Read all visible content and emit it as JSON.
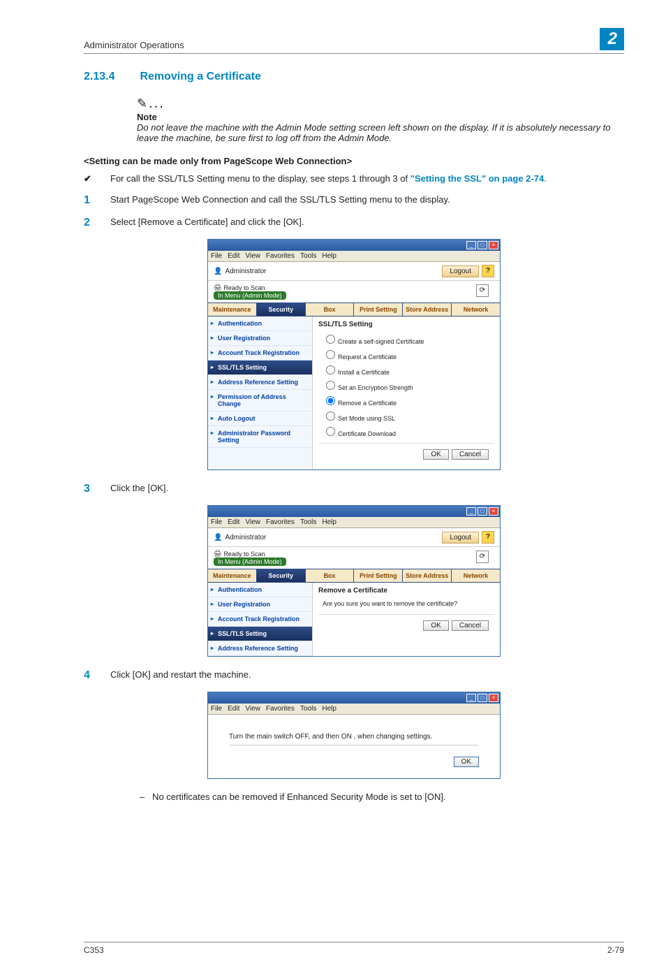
{
  "header": {
    "running_title": "Administrator Operations",
    "chapter_number": "2"
  },
  "section": {
    "number": "2.13.4",
    "title": "Removing a Certificate"
  },
  "note": {
    "label": "Note",
    "body": "Do not leave the machine with the Admin Mode setting screen left shown on the display. If it is absolutely necessary to leave the machine, be sure first to log off from the Admin Mode."
  },
  "subheading": "<Setting can be made only from PageScope Web Connection>",
  "check": {
    "mark": "✔",
    "text_a": "For call the SSL/TLS Setting menu to the display, see steps 1 through 3 of ",
    "link": "\"Setting the SSL\" on page 2-74",
    "text_b": "."
  },
  "steps": {
    "s1": {
      "num": "1",
      "text": "Start PageScope Web Connection and call the SSL/TLS Setting menu to the display."
    },
    "s2": {
      "num": "2",
      "text": "Select [Remove a Certificate] and click the [OK]."
    },
    "s3": {
      "num": "3",
      "text": "Click the [OK]."
    },
    "s4": {
      "num": "4",
      "text": "Click [OK] and restart the machine."
    }
  },
  "browser": {
    "menus": [
      "File",
      "Edit",
      "View",
      "Favorites",
      "Tools",
      "Help"
    ],
    "admin_label": "Administrator",
    "logout": "Logout",
    "help": "?",
    "ready": "Ready to Scan",
    "mode": "In Menu (Admin Mode)",
    "refresh": "⟳",
    "tabs": [
      "Maintenance",
      "Security",
      "Box",
      "Print Setting",
      "Store Address",
      "Network"
    ],
    "sidebar": [
      "Authentication",
      "User Registration",
      "Account Track Registration",
      "SSL/TLS Setting",
      "Address Reference Setting",
      "Permission of Address Change",
      "Auto Logout",
      "Administrator Password Setting"
    ],
    "ssl_title": "SSL/TLS Setting",
    "radios": [
      "Create a self-signed Certificate",
      "Request a Certificate",
      "Install a Certificate",
      "Set an Encryption Strength",
      "Remove a Certificate",
      "Set Mode using SSL",
      "Certificate Download"
    ],
    "ok": "OK",
    "cancel": "Cancel"
  },
  "browser2": {
    "sidebar": [
      "Authentication",
      "User Registration",
      "Account Track Registration",
      "SSL/TLS Setting",
      "Address Reference Setting"
    ],
    "title": "Remove a Certificate",
    "message": "Are you sure you want to remove the certificate?"
  },
  "browser3": {
    "message": "Turn the main switch OFF, and then ON , when changing settings.",
    "ok": "OK"
  },
  "bullet": {
    "dash": "–",
    "text": "No certificates can be removed if Enhanced Security Mode is set to [ON]."
  },
  "footer": {
    "left": "C353",
    "right": "2-79"
  },
  "colors": {
    "accent": "#0085c3",
    "tab_selected_bg": "#2e4c88"
  }
}
